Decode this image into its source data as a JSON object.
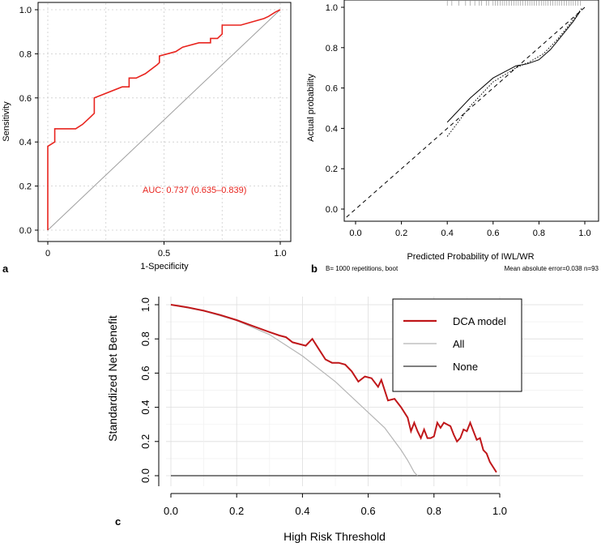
{
  "chart_data": [
    {
      "panel": "a",
      "type": "line",
      "xlabel": "1-Specificity",
      "ylabel": "Sensitivity",
      "xlim": [
        0,
        1
      ],
      "ylim": [
        0,
        1
      ],
      "xticks": [
        "0",
        "0.5",
        "1.0"
      ],
      "yticks": [
        "0.0",
        "0.2",
        "0.4",
        "0.6",
        "0.8",
        "1.0"
      ],
      "grid": true,
      "annotation": "AUC: 0.737 (0.635–0.839)",
      "series": [
        {
          "color": "#e8241e",
          "x": [
            0,
            0,
            0.03,
            0.03,
            0.12,
            0.15,
            0.15,
            0.18,
            0.18,
            0.2,
            0.2,
            0.32,
            0.32,
            0.35,
            0.35,
            0.38,
            0.38,
            0.42,
            0.42,
            0.47,
            0.47,
            0.48,
            0.48,
            0.55,
            0.55,
            0.58,
            0.58,
            0.65,
            0.65,
            0.7,
            0.7,
            0.73,
            0.73,
            0.75,
            0.75,
            0.83,
            0.83,
            0.93,
            0.93,
            0.95,
            0.95,
            0.98,
            0.98,
            1.0
          ],
          "y": [
            0,
            0.38,
            0.4,
            0.46,
            0.46,
            0.48,
            0.48,
            0.51,
            0.51,
            0.53,
            0.6,
            0.65,
            0.65,
            0.65,
            0.69,
            0.69,
            0.69,
            0.71,
            0.71,
            0.75,
            0.75,
            0.76,
            0.79,
            0.81,
            0.81,
            0.83,
            0.83,
            0.85,
            0.85,
            0.85,
            0.87,
            0.87,
            0.87,
            0.89,
            0.93,
            0.93,
            0.93,
            0.96,
            0.96,
            0.97,
            0.97,
            0.99,
            0.99,
            1.0
          ]
        },
        {
          "color": "#9e9e9e",
          "x": [
            0,
            1
          ],
          "y": [
            0,
            1
          ]
        }
      ]
    },
    {
      "panel": "b",
      "type": "line",
      "xlabel": "Predicted Probability of IWL/WR",
      "ylabel": "Actual probability",
      "xlim": [
        -0.04,
        1.04
      ],
      "ylim": [
        -0.04,
        1.0
      ],
      "xticks": [
        "0.0",
        "0.2",
        "0.4",
        "0.6",
        "0.8",
        "1.0"
      ],
      "yticks": [
        "0.0",
        "0.2",
        "0.4",
        "0.6",
        "0.8",
        "1.0"
      ],
      "footnote_left": "B= 1000 repetitions, boot",
      "footnote_right": "Mean absolute error=0.038 n=93",
      "series": [
        {
          "style": "solid",
          "x": [
            0.4,
            0.5,
            0.6,
            0.7,
            0.75,
            0.8,
            0.85,
            0.9,
            0.95,
            0.98
          ],
          "y": [
            0.43,
            0.55,
            0.65,
            0.71,
            0.72,
            0.74,
            0.79,
            0.86,
            0.93,
            0.98
          ]
        },
        {
          "style": "dotted",
          "x": [
            0.4,
            0.5,
            0.6,
            0.7,
            0.76,
            0.82,
            0.88,
            0.93,
            0.97,
            0.99
          ],
          "y": [
            0.36,
            0.51,
            0.63,
            0.7,
            0.73,
            0.77,
            0.84,
            0.91,
            0.97,
            1.0
          ]
        },
        {
          "style": "dashed",
          "x": [
            -0.04,
            1.0
          ],
          "y": [
            -0.04,
            1.0
          ]
        }
      ],
      "rug": [
        0.4,
        0.42,
        0.45,
        0.48,
        0.5,
        0.52,
        0.54,
        0.55,
        0.57,
        0.58,
        0.6,
        0.61,
        0.62,
        0.63,
        0.64,
        0.65,
        0.66,
        0.67,
        0.68,
        0.69,
        0.7,
        0.71,
        0.72,
        0.73,
        0.74,
        0.75,
        0.76,
        0.77,
        0.78,
        0.79,
        0.8,
        0.81,
        0.82,
        0.83,
        0.84,
        0.85,
        0.86,
        0.87,
        0.88,
        0.89,
        0.9,
        0.91,
        0.92,
        0.93,
        0.94,
        0.95,
        0.96,
        0.97,
        0.98
      ]
    },
    {
      "panel": "c",
      "type": "line",
      "xlabel": "High Risk Threshold",
      "ylabel": "Standardized Net Benefit",
      "xlim": [
        0,
        1
      ],
      "ylim": [
        0,
        1
      ],
      "xticks": [
        "0.0",
        "0.2",
        "0.4",
        "0.6",
        "0.8",
        "1.0"
      ],
      "yticks": [
        "0.0",
        "0.2",
        "0.4",
        "0.6",
        "0.8",
        "1.0"
      ],
      "grid": true,
      "legend": "top-right",
      "series": [
        {
          "name": "DCA model",
          "color": "#c0171a",
          "x": [
            0,
            0.05,
            0.1,
            0.15,
            0.2,
            0.25,
            0.3,
            0.33,
            0.35,
            0.37,
            0.39,
            0.41,
            0.43,
            0.45,
            0.47,
            0.49,
            0.51,
            0.53,
            0.55,
            0.57,
            0.59,
            0.61,
            0.63,
            0.64,
            0.66,
            0.68,
            0.7,
            0.72,
            0.73,
            0.74,
            0.75,
            0.76,
            0.77,
            0.78,
            0.79,
            0.8,
            0.81,
            0.82,
            0.83,
            0.84,
            0.85,
            0.86,
            0.87,
            0.88,
            0.89,
            0.9,
            0.91,
            0.92,
            0.93,
            0.94,
            0.95,
            0.96,
            0.97,
            0.98,
            0.99
          ],
          "y": [
            1.0,
            0.985,
            0.965,
            0.94,
            0.91,
            0.875,
            0.84,
            0.82,
            0.81,
            0.78,
            0.77,
            0.76,
            0.8,
            0.74,
            0.68,
            0.66,
            0.66,
            0.65,
            0.61,
            0.55,
            0.58,
            0.57,
            0.52,
            0.56,
            0.44,
            0.45,
            0.4,
            0.34,
            0.26,
            0.31,
            0.26,
            0.22,
            0.27,
            0.22,
            0.22,
            0.23,
            0.31,
            0.28,
            0.31,
            0.3,
            0.29,
            0.24,
            0.2,
            0.22,
            0.27,
            0.26,
            0.31,
            0.26,
            0.21,
            0.22,
            0.15,
            0.13,
            0.08,
            0.05,
            0.02
          ]
        },
        {
          "name": "All",
          "color": "#b5b5b5",
          "x": [
            0,
            0.1,
            0.2,
            0.3,
            0.4,
            0.5,
            0.6,
            0.65,
            0.7,
            0.72,
            0.74,
            0.75
          ],
          "y": [
            1.0,
            0.963,
            0.907,
            0.825,
            0.7,
            0.55,
            0.37,
            0.28,
            0.15,
            0.09,
            0.02,
            0.0
          ]
        },
        {
          "name": "None",
          "color": "#333333",
          "x": [
            0,
            1
          ],
          "y": [
            0,
            0
          ]
        }
      ]
    }
  ]
}
